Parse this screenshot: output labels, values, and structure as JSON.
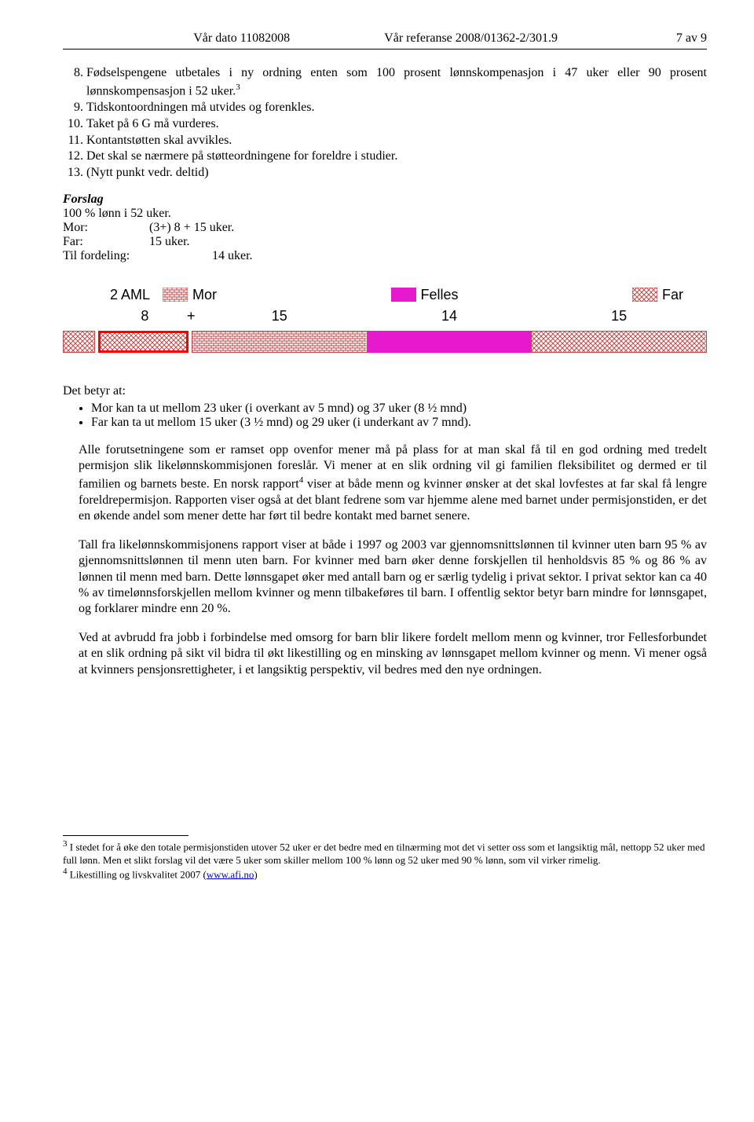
{
  "header": {
    "date_label": "Vår dato",
    "date_value": "11082008",
    "ref_label": "Vår referanse",
    "ref_value": "2008/01362-2/301.9",
    "page": "7 av 9"
  },
  "list": {
    "i8": "Fødselspengene utbetales i ny ordning enten som 100 prosent lønnskompenasjon i 47 uker eller 90 prosent lønnskompensasjon i 52 uker.",
    "i8_sup": "3",
    "i9": "Tidskontoordningen må utvides og forenkles.",
    "i10": "Taket på 6 G må vurderes.",
    "i11": "Kontantstøtten skal avvikles.",
    "i12": "Det skal se nærmere på støtteordningene for foreldre i studier.",
    "i13": "(Nytt punkt vedr. deltid)"
  },
  "forslag": {
    "title": "Forslag",
    "line1": "100 % lønn i 52 uker.",
    "mor_lab": "Mor:",
    "mor_val": "(3+) 8 + 15 uker.",
    "far_lab": "Far:",
    "far_val": "15 uker.",
    "til_lab": "Til fordeling:",
    "til_val": "14 uker."
  },
  "chart": {
    "type": "stacked-horizontal-bar",
    "background": "#ffffff",
    "segments": [
      {
        "key": "aml",
        "weeks": 3,
        "value_label": "",
        "color": "#c24a4a",
        "pattern": "cross",
        "border": "1px solid #c24a4a",
        "gap_after": 4
      },
      {
        "key": "eight",
        "weeks": 8,
        "value_label": "8",
        "color": "#c24a4a",
        "pattern": "cross",
        "border": "3px solid #ff0000",
        "gap_after": 4
      },
      {
        "key": "mor15",
        "weeks": 15,
        "value_label": "15",
        "color": "#c24a4a",
        "pattern": "brick",
        "border": "1px solid #c24a4a",
        "gap_after": 0
      },
      {
        "key": "felles",
        "weeks": 14,
        "value_label": "14",
        "color": "#e619cf",
        "pattern": "solid",
        "border": "none",
        "gap_after": 0
      },
      {
        "key": "far",
        "weeks": 15,
        "value_label": "15",
        "color": "#c24a4a",
        "pattern": "cross",
        "border": "1px solid #c24a4a",
        "gap_after": 0
      }
    ],
    "legend": {
      "aml": "2 AML",
      "mor": "Mor",
      "felles": "Felles",
      "far": "Far",
      "plus": "+"
    },
    "total_weeks": 55,
    "font_family": "Arial",
    "label_fontsize": 18
  },
  "detbetyr": {
    "heading": "Det betyr at:",
    "b1": "Mor kan ta ut mellom 23 uker (i overkant av 5 mnd) og 37 uker (8 ½ mnd)",
    "b2": "Far kan ta ut mellom 15 uker (3 ½ mnd) og 29 uker (i underkant av 7 mnd)."
  },
  "para1": "Alle forutsetningene som er ramset opp ovenfor mener må på plass for at man skal få til en god ordning med tredelt permisjon slik likelønnskommisjonen foreslår. Vi mener at en slik ordning vil gi familien fleksibilitet og dermed er til familien og barnets beste. En norsk rapport",
  "para1_sup": "4",
  "para1_cont": " viser at både menn og kvinner ønsker at det skal lovfestes at far skal få lengre foreldrepermisjon. Rapporten viser også at det blant fedrene som var hjemme alene med barnet under permisjonstiden, er det en økende andel som mener dette har ført til bedre kontakt med barnet senere.",
  "para2": "Tall fra likelønnskommisjonens rapport viser at både i 1997 og 2003 var gjennomsnittslønnen til kvinner uten barn 95 % av gjennomsnittslønnen til menn uten barn. For kvinner med barn øker denne forskjellen til henholdsvis 85 % og 86 % av lønnen til menn med barn. Dette lønnsgapet øker med antall barn og er særlig tydelig i privat sektor. I privat sektor kan ca 40 % av timelønnsforskjellen mellom kvinner og menn tilbakeføres til barn. I offentlig sektor betyr barn mindre for lønnsgapet, og forklarer mindre enn 20 %.",
  "para3": "Ved at avbrudd fra jobb i forbindelse med omsorg for barn blir likere fordelt mellom menn og kvinner, tror Fellesforbundet at en slik ordning på sikt vil bidra til økt likestilling og en minsking av lønnsgapet mellom kvinner og menn. Vi mener også at kvinners pensjonsrettigheter, i et langsiktig perspektiv, vil bedres med den nye ordningen.",
  "footnotes": {
    "f3_num": "3",
    "f3": " I stedet for å øke den totale permisjonstiden utover 52 uker er det bedre med en tilnærming mot det vi setter oss som et langsiktig mål, nettopp 52 uker med full lønn. Men et slikt forslag vil det være 5 uker som skiller mellom 100 % lønn og 52 uker med 90 % lønn, som vil virker rimelig.",
    "f4_num": "4",
    "f4_pre": " Likestilling og livskvalitet 2007 (",
    "f4_link": "www.afi.no",
    "f4_post": ")"
  }
}
